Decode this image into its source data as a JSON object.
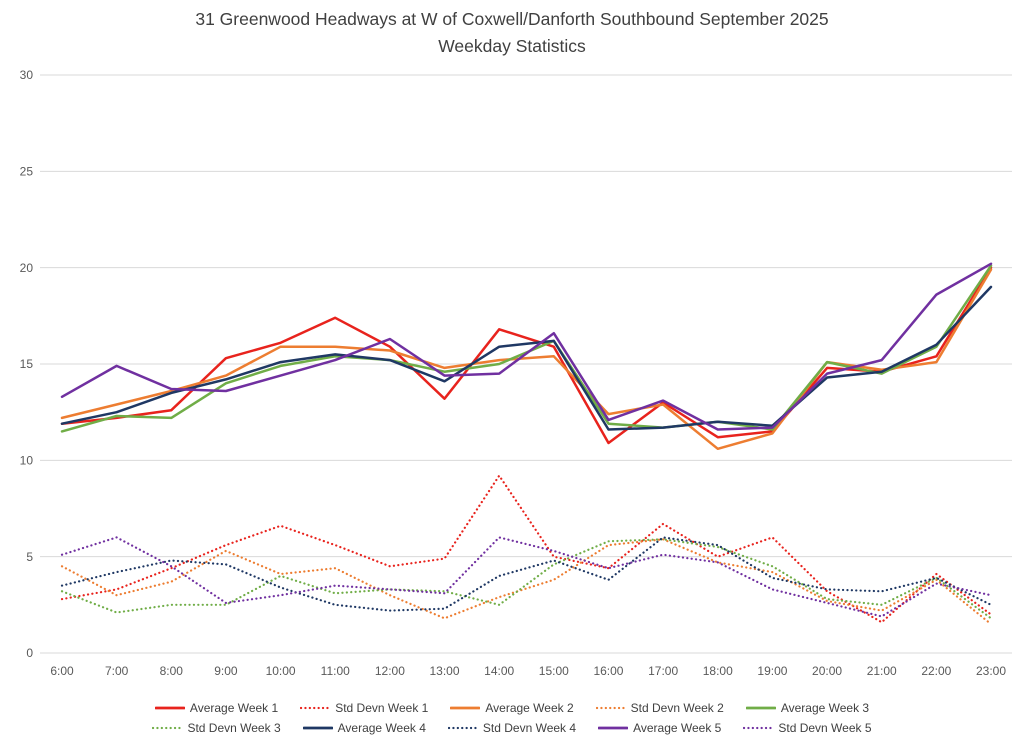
{
  "title": "31 Greenwood Headways at W of Coxwell/Danforth Southbound September 2025",
  "subtitle": "Weekday Statistics",
  "colors": {
    "red": "#e8231d",
    "orange": "#ED7D31",
    "green": "#70AD47",
    "navy": "#1F3864",
    "purple": "#7030A0",
    "gridline": "#d9d9d9",
    "axis_text": "#595959",
    "title_text": "#404040"
  },
  "chart_data": {
    "type": "line",
    "x": [
      "6:00",
      "7:00",
      "8:00",
      "9:00",
      "10:00",
      "11:00",
      "12:00",
      "13:00",
      "14:00",
      "15:00",
      "16:00",
      "17:00",
      "18:00",
      "19:00",
      "20:00",
      "21:00",
      "22:00",
      "23:00"
    ],
    "ylim": [
      0,
      30
    ],
    "yticks": [
      0,
      5,
      10,
      15,
      20,
      25,
      30
    ],
    "grid": true,
    "legend_position": "bottom",
    "series": [
      {
        "name": "Average Week 1",
        "style": "solid",
        "color": "#e8231d",
        "values": [
          11.9,
          12.2,
          12.6,
          15.3,
          16.1,
          17.4,
          15.9,
          13.2,
          16.8,
          15.9,
          10.9,
          13.0,
          11.2,
          11.5,
          14.8,
          14.6,
          15.4,
          20.0
        ]
      },
      {
        "name": "Std Devn Week 1",
        "style": "dotted",
        "color": "#e8231d",
        "values": [
          2.8,
          3.3,
          4.4,
          5.6,
          6.6,
          5.6,
          4.5,
          4.9,
          9.2,
          5.0,
          4.4,
          6.7,
          5.0,
          6.0,
          3.2,
          1.6,
          4.1,
          2.0
        ]
      },
      {
        "name": "Average Week 2",
        "style": "solid",
        "color": "#ED7D31",
        "values": [
          12.2,
          12.9,
          13.6,
          14.4,
          15.9,
          15.9,
          15.7,
          14.8,
          15.2,
          15.4,
          12.4,
          12.9,
          10.6,
          11.4,
          15.1,
          14.7,
          15.1,
          19.9
        ]
      },
      {
        "name": "Std Devn Week 2",
        "style": "dotted",
        "color": "#ED7D31",
        "values": [
          4.5,
          3.0,
          3.7,
          5.3,
          4.1,
          4.4,
          3.0,
          1.8,
          2.9,
          3.8,
          5.6,
          5.9,
          4.7,
          4.2,
          2.7,
          2.2,
          3.8,
          1.5
        ]
      },
      {
        "name": "Average Week 3",
        "style": "solid",
        "color": "#70AD47",
        "values": [
          11.5,
          12.3,
          12.2,
          14.0,
          14.9,
          15.4,
          15.2,
          14.6,
          15.0,
          16.2,
          11.9,
          11.7,
          12.0,
          11.6,
          15.1,
          14.5,
          15.9,
          20.1
        ]
      },
      {
        "name": "Std Devn Week 3",
        "style": "dotted",
        "color": "#70AD47",
        "values": [
          3.2,
          2.1,
          2.5,
          2.5,
          4.0,
          3.1,
          3.3,
          3.2,
          2.5,
          4.6,
          5.8,
          5.9,
          5.5,
          4.5,
          2.8,
          2.5,
          3.9,
          1.8
        ]
      },
      {
        "name": "Average Week 4",
        "style": "solid",
        "color": "#1F3864",
        "values": [
          11.9,
          12.5,
          13.5,
          14.2,
          15.1,
          15.5,
          15.2,
          14.1,
          15.9,
          16.2,
          11.6,
          11.7,
          12.0,
          11.8,
          14.3,
          14.6,
          16.0,
          19.0
        ]
      },
      {
        "name": "Std Devn Week 4",
        "style": "dotted",
        "color": "#1F3864",
        "values": [
          3.5,
          4.2,
          4.8,
          4.6,
          3.4,
          2.5,
          2.2,
          2.3,
          4.0,
          4.8,
          3.8,
          6.0,
          5.6,
          3.9,
          3.3,
          3.2,
          3.9,
          2.5
        ]
      },
      {
        "name": "Average Week 5",
        "style": "solid",
        "color": "#7030A0",
        "values": [
          13.3,
          14.9,
          13.7,
          13.6,
          14.4,
          15.2,
          16.3,
          14.4,
          14.5,
          16.6,
          12.1,
          13.1,
          11.6,
          11.7,
          14.5,
          15.2,
          18.6,
          20.2
        ]
      },
      {
        "name": "Std Devn Week 5",
        "style": "dotted",
        "color": "#7030A0",
        "values": [
          5.1,
          6.0,
          4.5,
          2.6,
          3.0,
          3.5,
          3.3,
          3.1,
          6.0,
          5.3,
          4.4,
          5.1,
          4.7,
          3.3,
          2.6,
          1.9,
          3.6,
          3.0
        ]
      }
    ]
  }
}
